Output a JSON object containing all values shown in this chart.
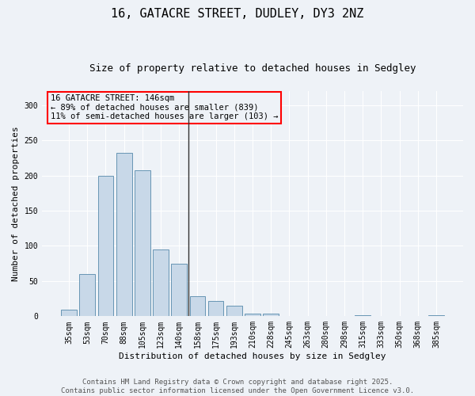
{
  "title1": "16, GATACRE STREET, DUDLEY, DY3 2NZ",
  "title2": "Size of property relative to detached houses in Sedgley",
  "xlabel": "Distribution of detached houses by size in Sedgley",
  "ylabel": "Number of detached properties",
  "categories": [
    "35sqm",
    "53sqm",
    "70sqm",
    "88sqm",
    "105sqm",
    "123sqm",
    "140sqm",
    "158sqm",
    "175sqm",
    "193sqm",
    "210sqm",
    "228sqm",
    "245sqm",
    "263sqm",
    "280sqm",
    "298sqm",
    "315sqm",
    "333sqm",
    "350sqm",
    "368sqm",
    "385sqm"
  ],
  "values": [
    9,
    60,
    200,
    232,
    207,
    95,
    75,
    28,
    22,
    15,
    4,
    4,
    0,
    0,
    0,
    0,
    1,
    0,
    0,
    0,
    1
  ],
  "bar_color": "#c8d8e8",
  "bar_edgecolor": "#5588aa",
  "vline_color": "#333333",
  "annotation_text_line1": "16 GATACRE STREET: 146sqm",
  "annotation_text_line2": "← 89% of detached houses are smaller (839)",
  "annotation_text_line3": "11% of semi-detached houses are larger (103) →",
  "annotation_box_color": "red",
  "background_color": "#eef2f7",
  "grid_color": "#ffffff",
  "ylim": [
    0,
    320
  ],
  "yticks": [
    0,
    50,
    100,
    150,
    200,
    250,
    300
  ],
  "footer_line1": "Contains HM Land Registry data © Crown copyright and database right 2025.",
  "footer_line2": "Contains public sector information licensed under the Open Government Licence v3.0.",
  "title_fontsize": 11,
  "subtitle_fontsize": 9,
  "axis_label_fontsize": 8,
  "tick_fontsize": 7,
  "annotation_fontsize": 7.5,
  "footer_fontsize": 6.5
}
